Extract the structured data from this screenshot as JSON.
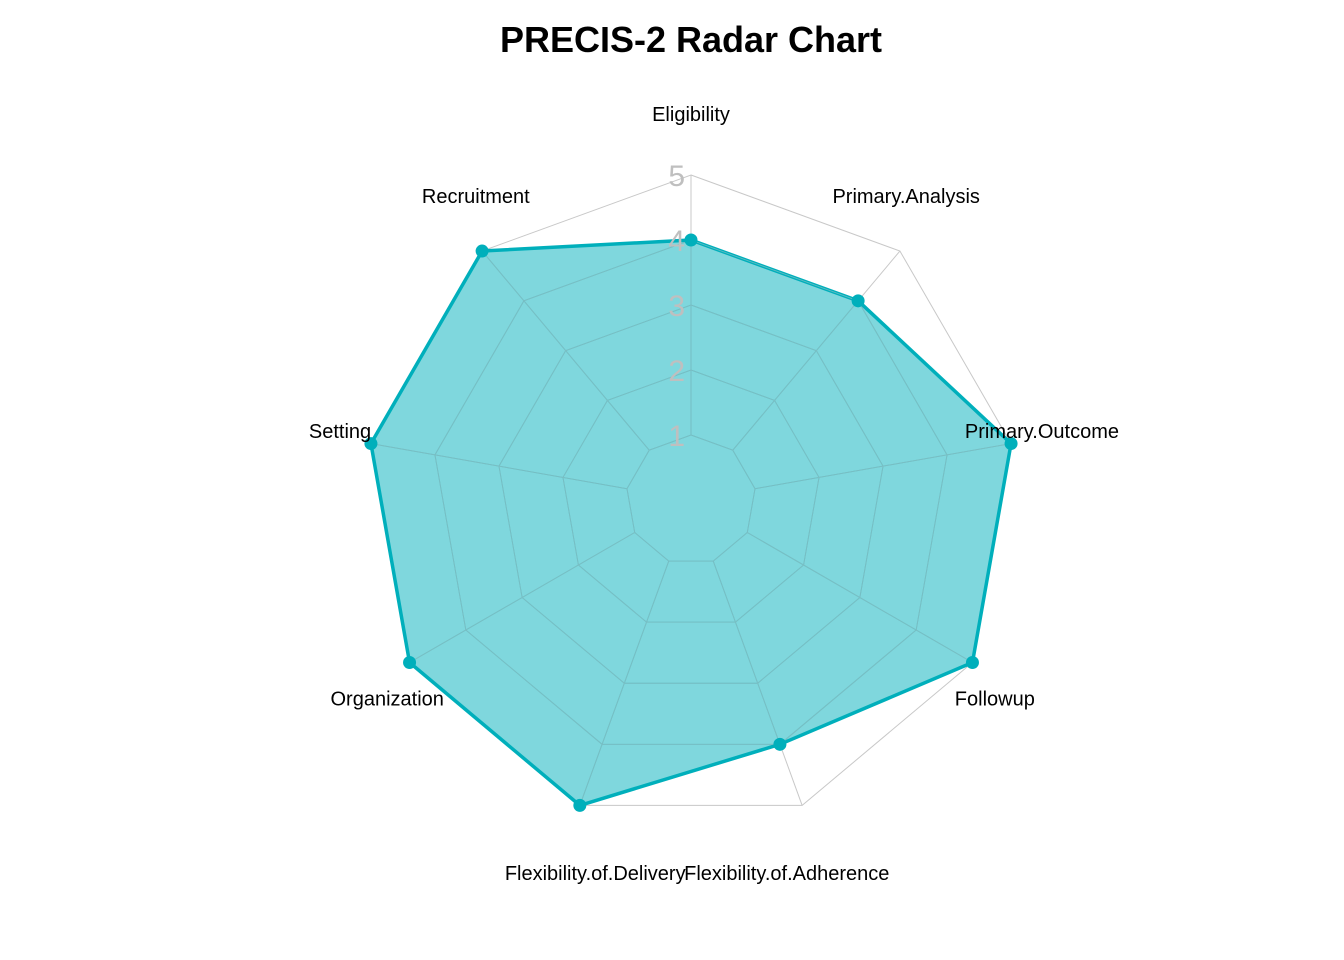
{
  "chart_data": {
    "type": "radar",
    "title": "PRECIS-2 Radar Chart",
    "axes": [
      "Eligibility",
      "Primary.Analysis",
      "Primary.Outcome",
      "Followup",
      "Flexibility.of.Adherence",
      "Flexibility.of.Delivery",
      "Organization",
      "Setting",
      "Recruitment"
    ],
    "values": [
      4,
      4,
      5,
      5,
      4,
      5,
      5,
      5,
      5
    ],
    "range": [
      0,
      5
    ],
    "ticks": [
      "1",
      "2",
      "3",
      "4",
      "5"
    ],
    "grid": true,
    "colors": {
      "fill": "#00AFBB",
      "line": "#00AFBB",
      "grid_outer": "#c8c8c8",
      "grid_inner": "#7fbfc4",
      "tick": "#bfbfbf"
    }
  }
}
